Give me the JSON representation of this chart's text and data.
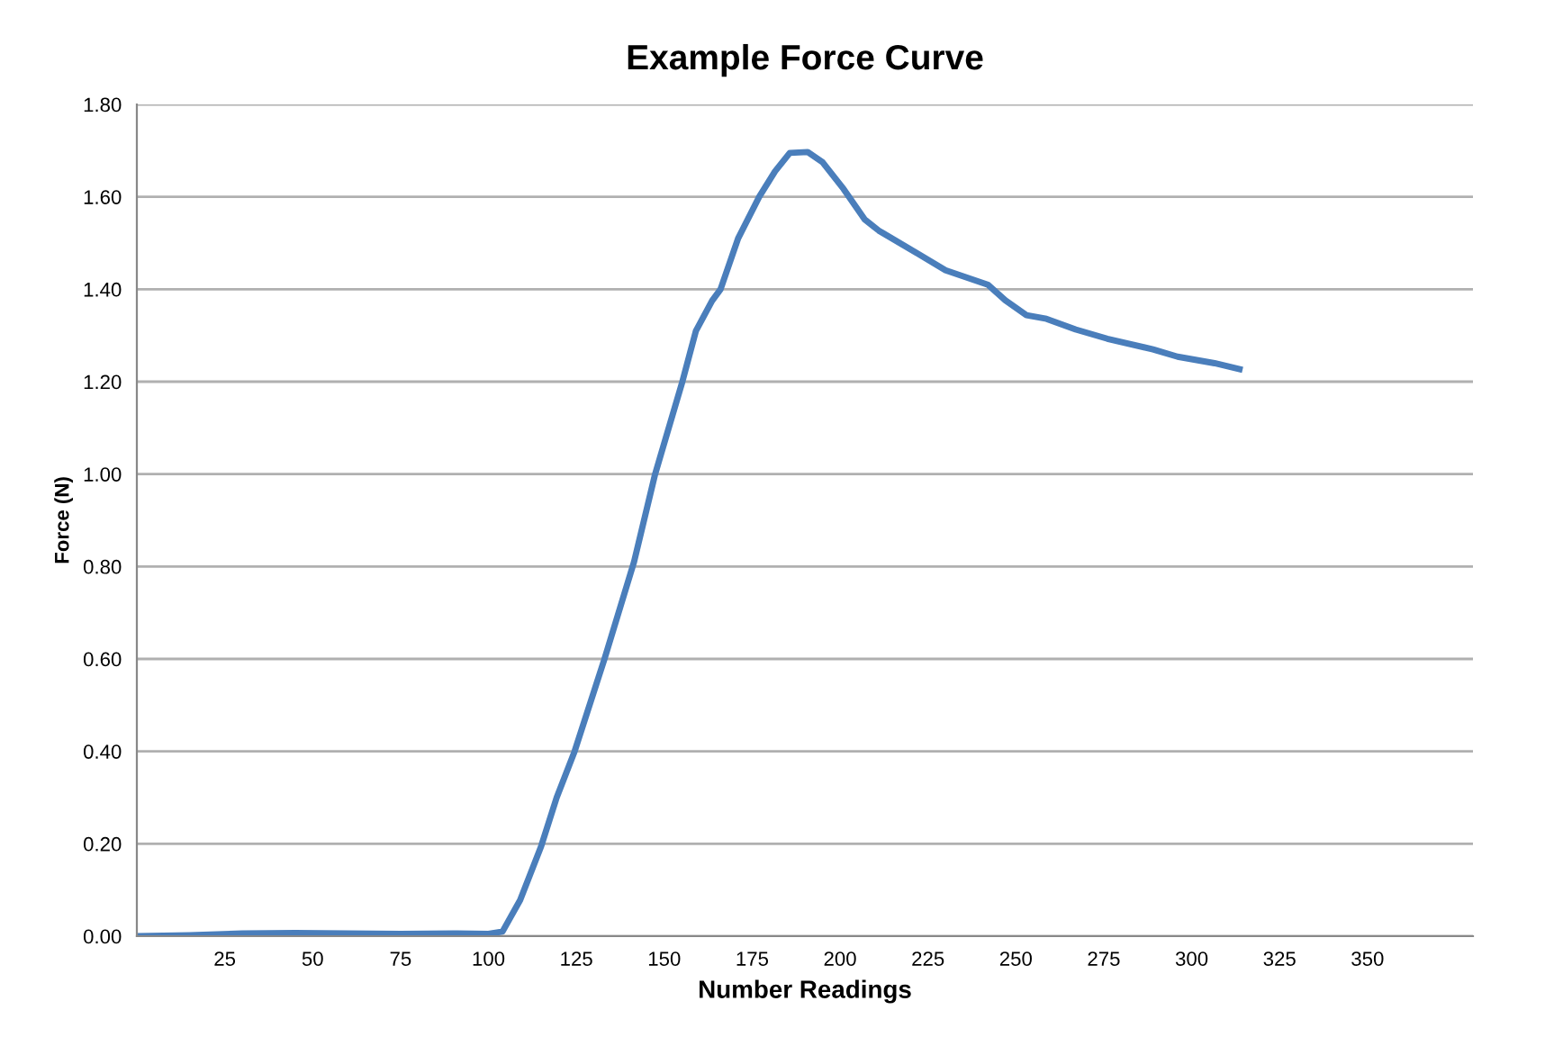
{
  "chart_data": {
    "type": "line",
    "title": "Example Force Curve",
    "xlabel": "Number Readings",
    "ylabel": "Force (N)",
    "x": [
      0,
      15,
      30,
      45,
      60,
      75,
      90,
      100,
      104,
      109,
      115,
      119.4,
      124.5,
      133,
      141.4,
      147.4,
      155,
      159,
      163.6,
      166,
      171,
      177,
      181.5,
      185.7,
      190.8,
      195,
      201,
      207,
      211,
      219.7,
      230,
      242,
      247,
      253,
      258.7,
      267,
      276,
      289,
      296,
      306.5,
      313.6
    ],
    "series": [
      {
        "color": "#4a7ebb",
        "values": [
          0,
          0.002,
          0.006,
          0.007,
          0.006,
          0.005,
          0.006,
          0.005,
          0.01,
          0.078,
          0.195,
          0.3,
          0.4,
          0.6,
          0.81,
          1.0,
          1.196,
          1.31,
          1.375,
          1.4,
          1.51,
          1.6,
          1.655,
          1.695,
          1.697,
          1.675,
          1.617,
          1.551,
          1.527,
          1.488,
          1.441,
          1.41,
          1.376,
          1.344,
          1.336,
          1.313,
          1.293,
          1.27,
          1.254,
          1.24,
          1.227
        ]
      }
    ],
    "xlim": [
      0,
      380
    ],
    "xticks": [
      25,
      50,
      75,
      100,
      125,
      150,
      175,
      200,
      225,
      250,
      275,
      300,
      325,
      350
    ],
    "ylim": [
      0,
      1.8
    ],
    "yticks": [
      {
        "value": 0,
        "label": "0.00"
      },
      {
        "value": 0.2,
        "label": "0.20"
      },
      {
        "value": 0.4,
        "label": "0.40"
      },
      {
        "value": 0.6,
        "label": "0.60"
      },
      {
        "value": 0.8,
        "label": "0.80"
      },
      {
        "value": 1.0,
        "label": "1.00"
      },
      {
        "value": 1.2,
        "label": "1.20"
      },
      {
        "value": 1.4,
        "label": "1.40"
      },
      {
        "value": 1.6,
        "label": "1.60"
      },
      {
        "value": 1.8,
        "label": "1.80"
      }
    ],
    "grid": "y",
    "marker": "none",
    "line_style": "solid"
  }
}
